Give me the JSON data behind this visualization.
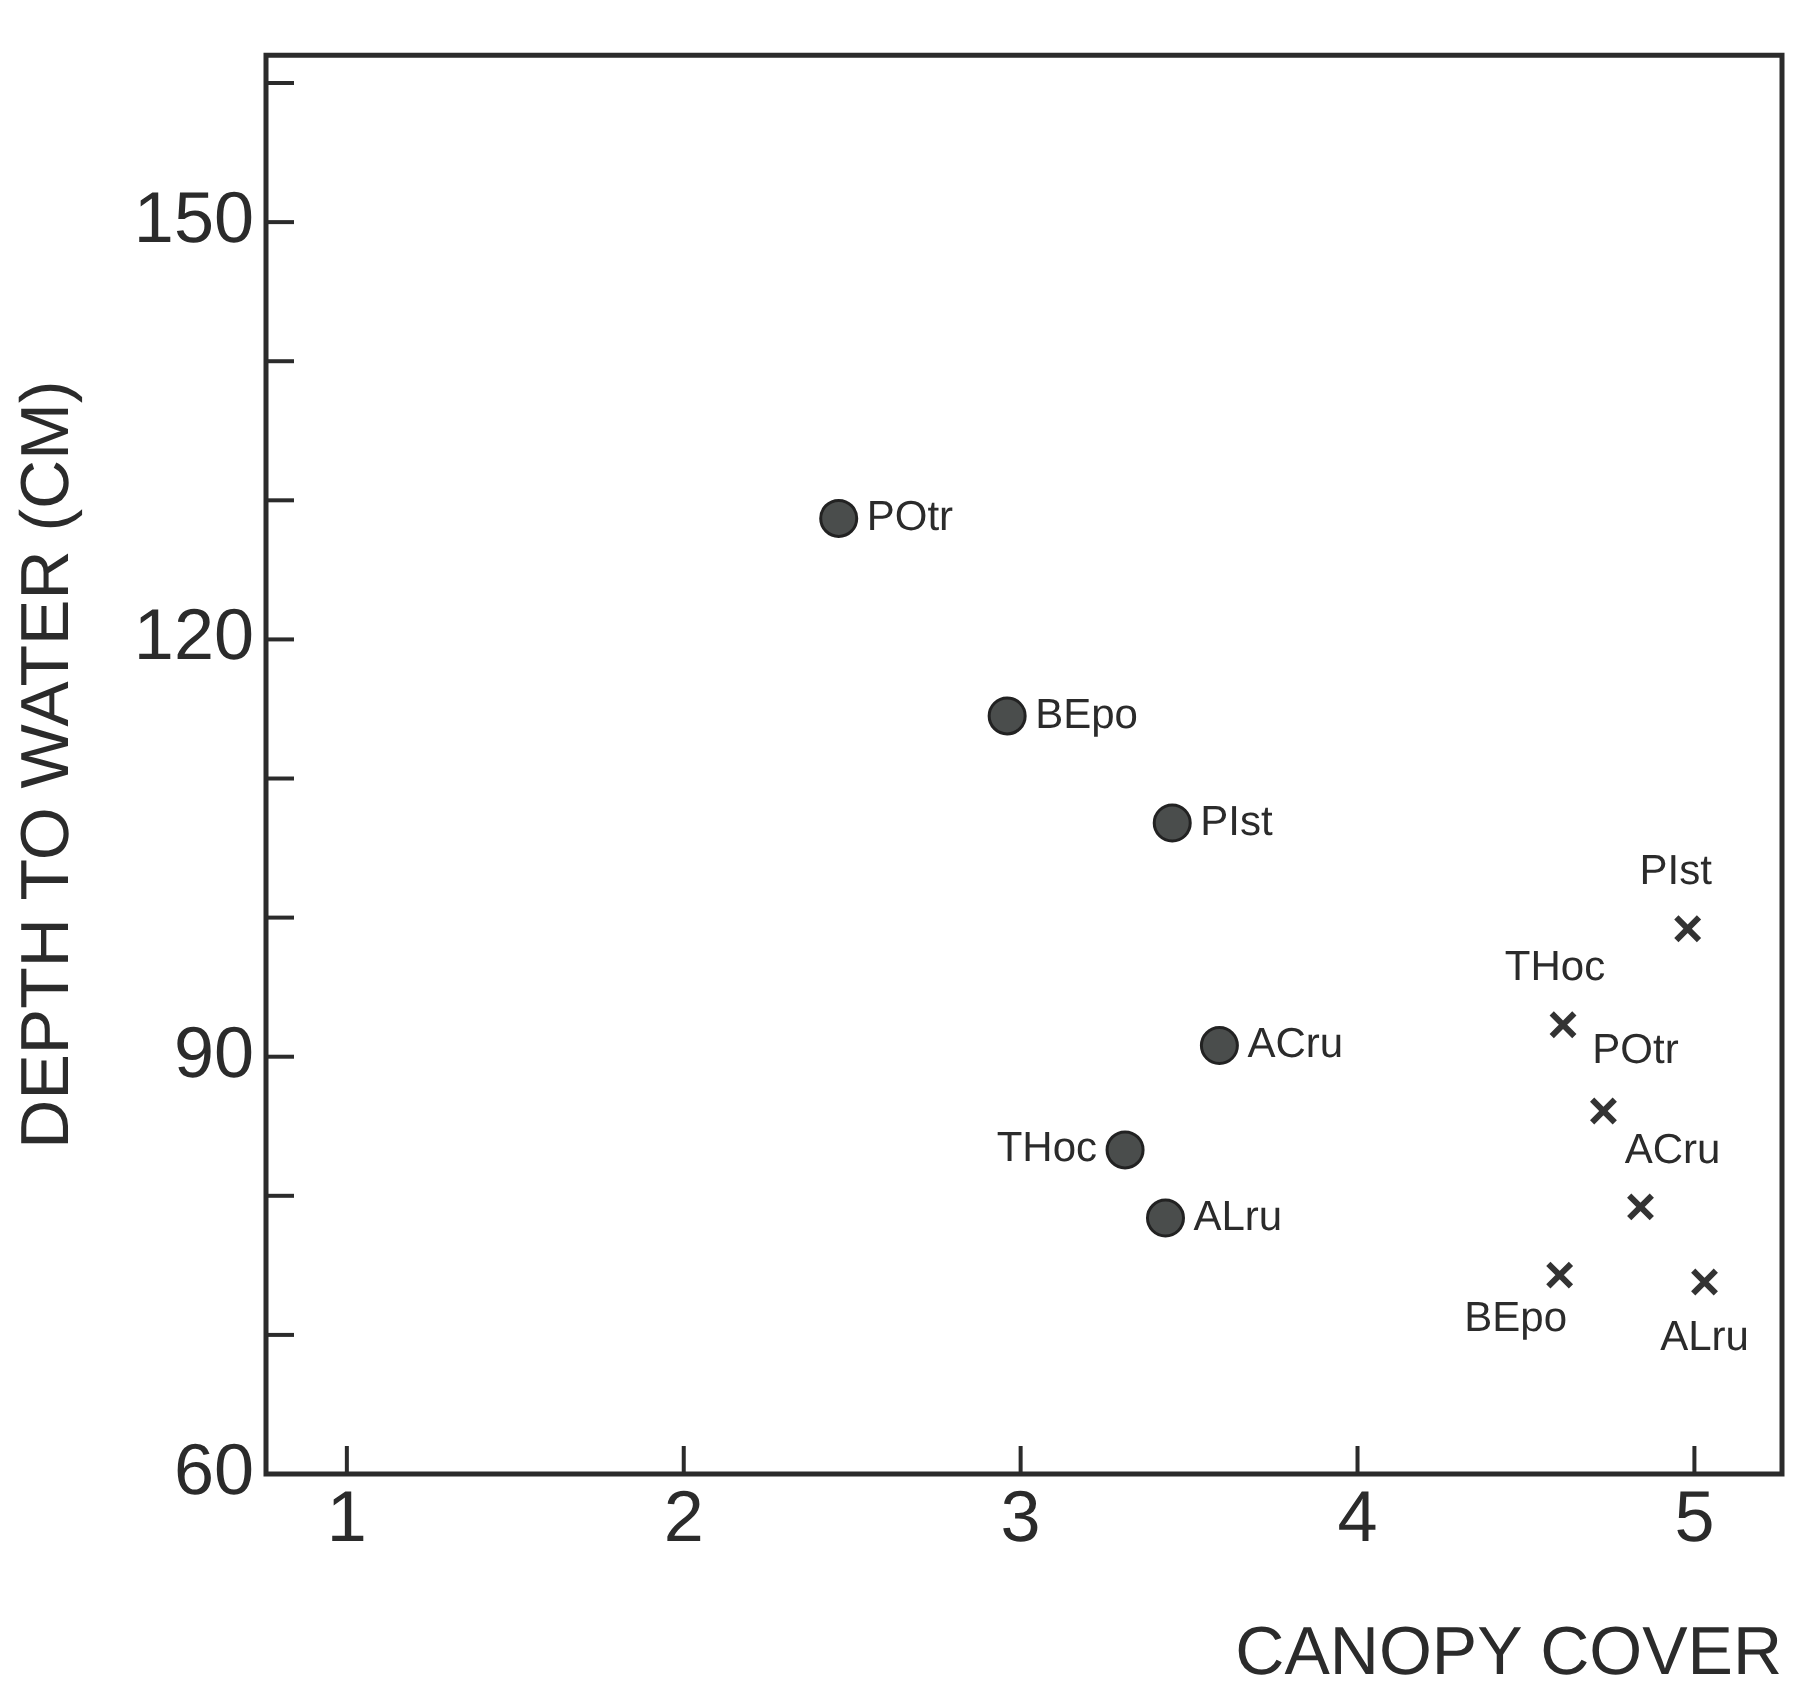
{
  "chart_data": {
    "type": "scatter",
    "xlabel": "CANOPY COVER",
    "ylabel": "DEPTH TO WATER (CM)",
    "xlim": [
      0.76,
      5.26
    ],
    "xticks": [
      1,
      2,
      3,
      4,
      5
    ],
    "ylim": [
      60,
      162
    ],
    "yticks": [
      60,
      {
        "value": 70,
        "label": null
      },
      {
        "value": 80,
        "label": null
      },
      90,
      {
        "value": 100,
        "label": null
      },
      {
        "value": 110,
        "label": null
      },
      120,
      {
        "value": 130,
        "label": null
      },
      {
        "value": 140,
        "label": null
      },
      150,
      {
        "value": 160,
        "label": null
      }
    ],
    "grid": false,
    "legend": false,
    "series": [
      {
        "color": "#4a4d4c",
        "marker": "circle",
        "x": [
          2.46,
          2.96,
          3.45,
          3.59,
          3.31,
          3.43
        ],
        "values": [
          128.7,
          114.5,
          106.8,
          90.8,
          83.3,
          78.4
        ]
      },
      {
        "color": "#333333",
        "marker": "cross",
        "x": [
          4.98,
          4.61,
          4.73,
          4.84,
          4.6,
          5.03
        ],
        "values": [
          99.2,
          92.3,
          86.1,
          79.2,
          74.3,
          73.8
        ]
      }
    ],
    "annotations": [
      {
        "text": "POtr",
        "x": 2.46,
        "y": 128.7
      },
      {
        "text": "BEpo",
        "x": 2.96,
        "y": 114.5
      },
      {
        "text": "PIst",
        "x": 3.45,
        "y": 106.8
      },
      {
        "text": "ACru",
        "x": 3.59,
        "y": 90.8
      },
      {
        "text": "THoc",
        "x": 3.31,
        "y": 83.3
      },
      {
        "text": "ALru",
        "x": 3.43,
        "y": 78.4
      },
      {
        "text": "PIst",
        "x": 4.98,
        "y": 99.2
      },
      {
        "text": "THoc",
        "x": 4.61,
        "y": 92.3
      },
      {
        "text": "POtr",
        "x": 4.73,
        "y": 86.1
      },
      {
        "text": "ACru",
        "x": 4.84,
        "y": 79.2
      },
      {
        "text": "BEpo",
        "x": 4.6,
        "y": 74.3
      },
      {
        "text": "ALru",
        "x": 5.03,
        "y": 73.8
      }
    ]
  }
}
